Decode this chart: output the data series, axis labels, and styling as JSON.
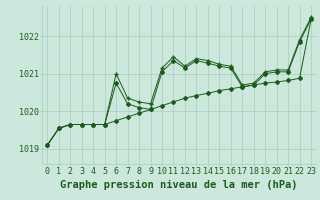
{
  "bg_color": "#cce8dc",
  "grid_color": "#aaccbb",
  "line_color": "#1a5c1a",
  "bottom_label": "Graphe pression niveau de la mer (hPa)",
  "xlim": [
    -0.5,
    23.5
  ],
  "ylim": [
    1018.6,
    1022.8
  ],
  "yticks": [
    1019,
    1020,
    1021,
    1022
  ],
  "xticks": [
    0,
    1,
    2,
    3,
    4,
    5,
    6,
    7,
    8,
    9,
    10,
    11,
    12,
    13,
    14,
    15,
    16,
    17,
    18,
    19,
    20,
    21,
    22,
    23
  ],
  "series1": [
    1019.1,
    1019.55,
    1019.65,
    1019.65,
    1019.65,
    1019.65,
    1019.75,
    1019.85,
    1019.95,
    1020.05,
    1020.15,
    1020.25,
    1020.35,
    1020.42,
    1020.48,
    1020.55,
    1020.6,
    1020.65,
    1020.7,
    1020.75,
    1020.78,
    1020.82,
    1020.88,
    1022.45
  ],
  "series2": [
    1019.1,
    1019.55,
    1019.65,
    1019.65,
    1019.65,
    1019.65,
    1020.75,
    1020.2,
    1020.1,
    1020.05,
    1021.05,
    1021.35,
    1021.15,
    1021.35,
    1021.28,
    1021.2,
    1021.15,
    1020.65,
    1020.7,
    1021.0,
    1021.05,
    1021.05,
    1021.85,
    1022.45
  ],
  "series3": [
    1019.1,
    1019.55,
    1019.65,
    1019.65,
    1019.65,
    1019.65,
    1021.0,
    1020.35,
    1020.25,
    1020.2,
    1021.15,
    1021.45,
    1021.2,
    1021.4,
    1021.35,
    1021.25,
    1021.2,
    1020.7,
    1020.75,
    1021.05,
    1021.1,
    1021.1,
    1021.9,
    1022.5
  ],
  "label_fontsize": 7.5,
  "tick_fontsize": 6.0
}
